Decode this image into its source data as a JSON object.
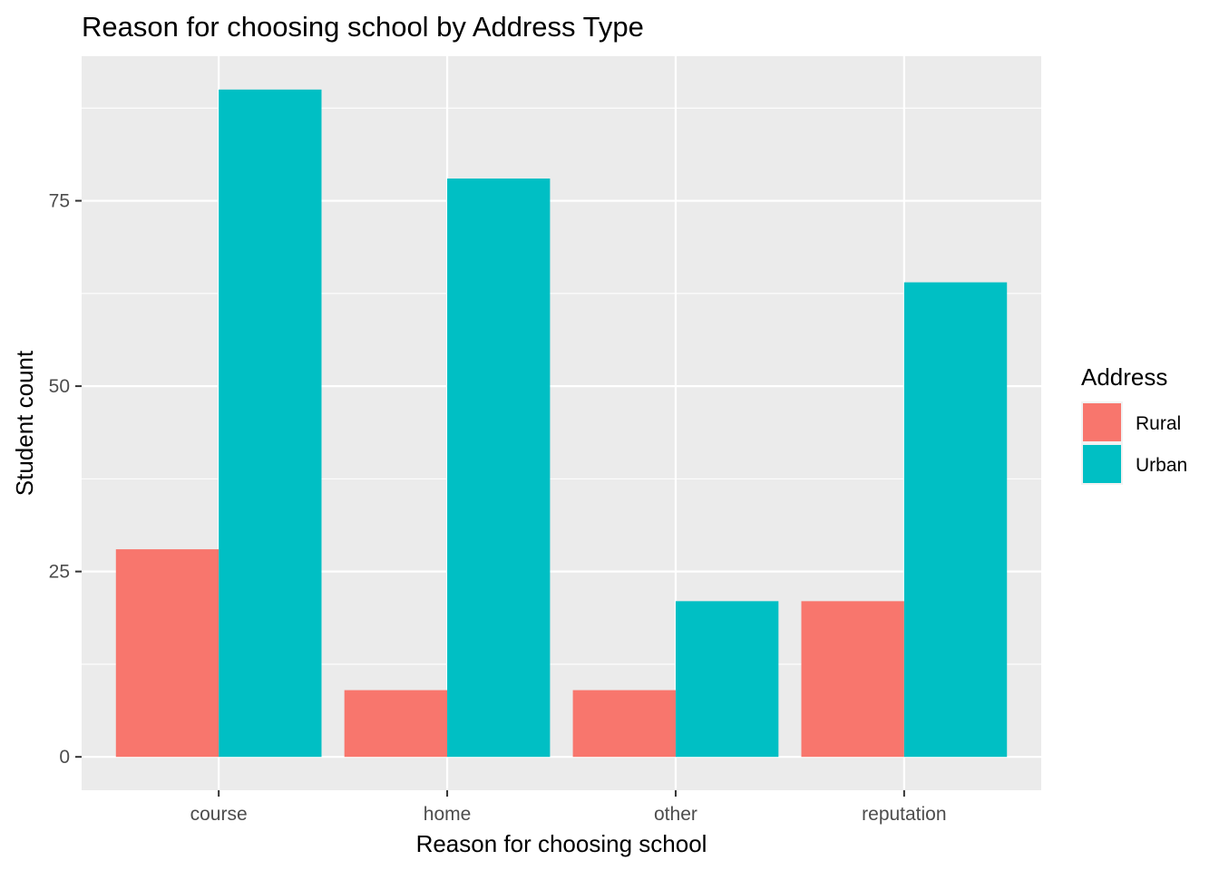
{
  "chart_data": {
    "type": "bar",
    "title": "Reason for choosing school by Address Type",
    "xlabel": "Reason for choosing school",
    "ylabel": "Student count",
    "categories": [
      "course",
      "home",
      "other",
      "reputation"
    ],
    "series": [
      {
        "name": "Rural",
        "color": "#F8766D",
        "values": [
          28,
          9,
          9,
          21
        ]
      },
      {
        "name": "Urban",
        "color": "#00BFC4",
        "values": [
          90,
          78,
          21,
          64
        ]
      }
    ],
    "yticks": [
      0,
      25,
      50,
      75
    ],
    "ytick_labels": [
      "0",
      "25",
      "50",
      "75"
    ],
    "ylim": [
      -4.5,
      94.5
    ],
    "grid": true,
    "legend_title": "Address",
    "legend_position": "right",
    "panel_background": "#EBEBEB",
    "grid_color": "#FFFFFF"
  }
}
